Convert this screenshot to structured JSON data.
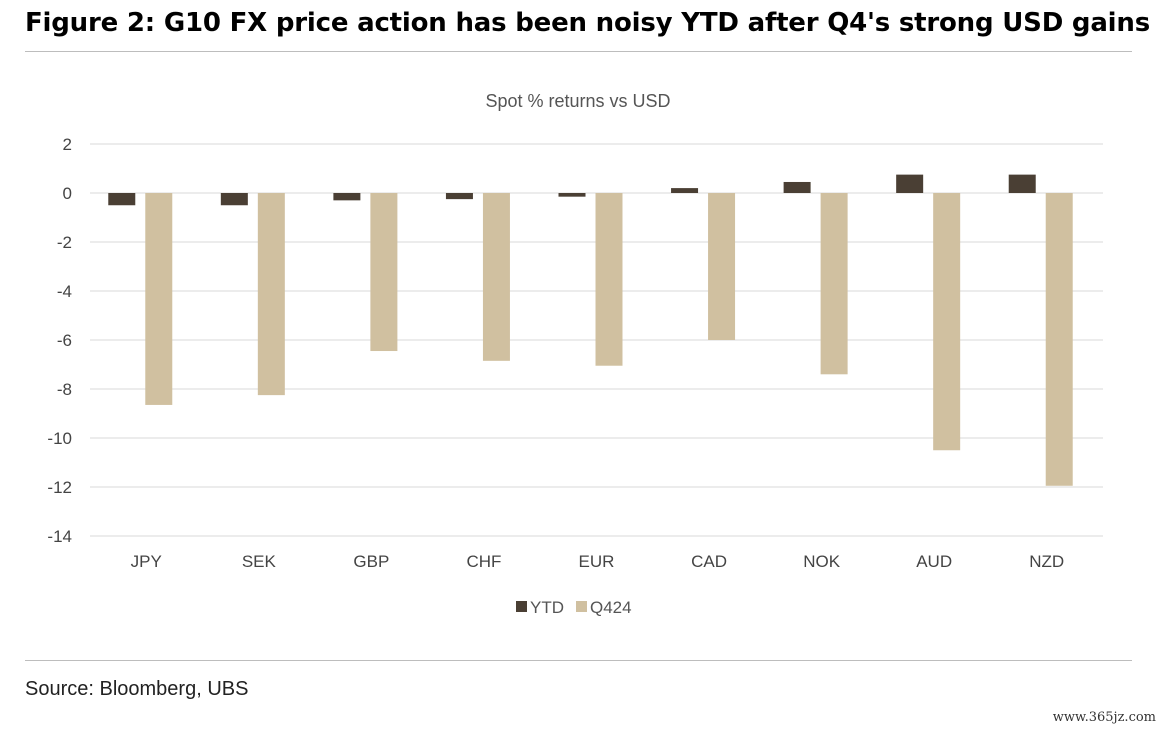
{
  "figure_title": "Figure 2: G10 FX price action has been noisy YTD after Q4's strong USD gains",
  "source": "Source: Bloomberg, UBS",
  "watermark": "www.365jz.com",
  "chart_data": {
    "type": "bar",
    "title": "Spot % returns vs USD",
    "xlabel": "",
    "ylabel": "",
    "categories": [
      "JPY",
      "SEK",
      "GBP",
      "CHF",
      "EUR",
      "CAD",
      "NOK",
      "AUD",
      "NZD"
    ],
    "series": [
      {
        "name": "YTD",
        "color": "#4a3f34",
        "values": [
          -0.5,
          -0.5,
          -0.3,
          -0.25,
          -0.15,
          0.2,
          0.45,
          0.75,
          0.75
        ]
      },
      {
        "name": "Q424",
        "color": "#d0c0a0",
        "values": [
          -8.65,
          -8.25,
          -6.45,
          -6.85,
          -7.05,
          -6.0,
          -7.4,
          -10.5,
          -11.95
        ]
      }
    ],
    "ylim": [
      -14,
      2
    ],
    "yticks": [
      2,
      0,
      -2,
      -4,
      -6,
      -8,
      -10,
      -12,
      -14
    ],
    "grid": true,
    "legend": "bottom"
  }
}
